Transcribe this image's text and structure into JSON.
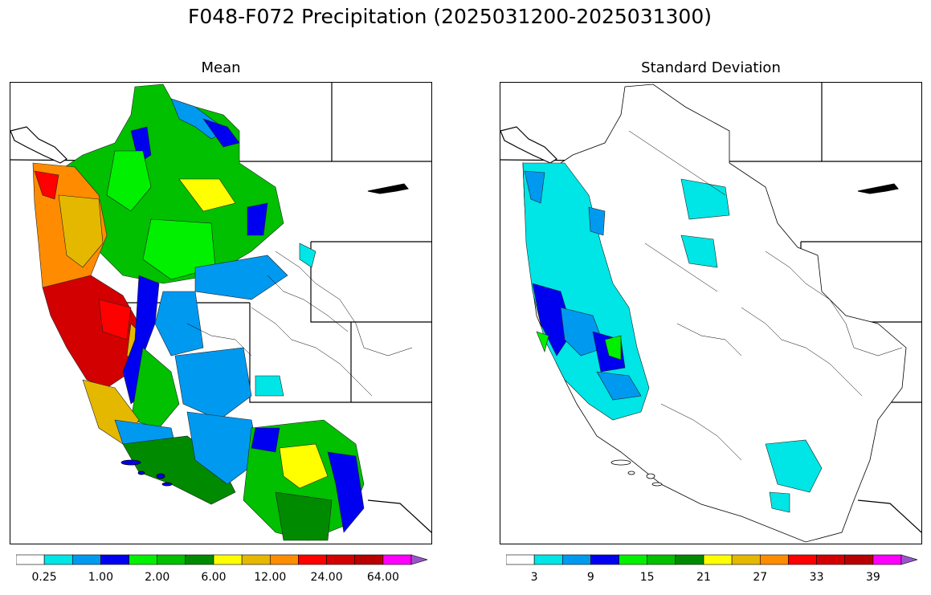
{
  "figure": {
    "title": "F048-F072 Precipitation (2025031200-2025031300)"
  },
  "panels": [
    {
      "id": "mean",
      "title": "Mean",
      "colorbar": {
        "colors": [
          "#ffffff",
          "#00e5e5",
          "#0099f0",
          "#0000f0",
          "#00f000",
          "#00c000",
          "#008a00",
          "#ffff00",
          "#e5b800",
          "#ff8c00",
          "#ff0000",
          "#d20000",
          "#b80000",
          "#ff00ff",
          "#9955c8"
        ],
        "tick_labels": [
          "0.25",
          "1.00",
          "2.00",
          "6.00",
          "12.00",
          "24.00",
          "64.00"
        ],
        "extend": "max"
      }
    },
    {
      "id": "std",
      "title": "Standard Deviation",
      "colorbar": {
        "colors": [
          "#ffffff",
          "#00e5e5",
          "#0099f0",
          "#0000f0",
          "#00f000",
          "#00c000",
          "#008a00",
          "#ffff00",
          "#e5b800",
          "#ff8c00",
          "#ff0000",
          "#d20000",
          "#b80000",
          "#ff00ff",
          "#9955c8"
        ],
        "tick_labels": [
          "3",
          "9",
          "15",
          "21",
          "27",
          "33",
          "39"
        ],
        "extend": "max"
      }
    }
  ]
}
